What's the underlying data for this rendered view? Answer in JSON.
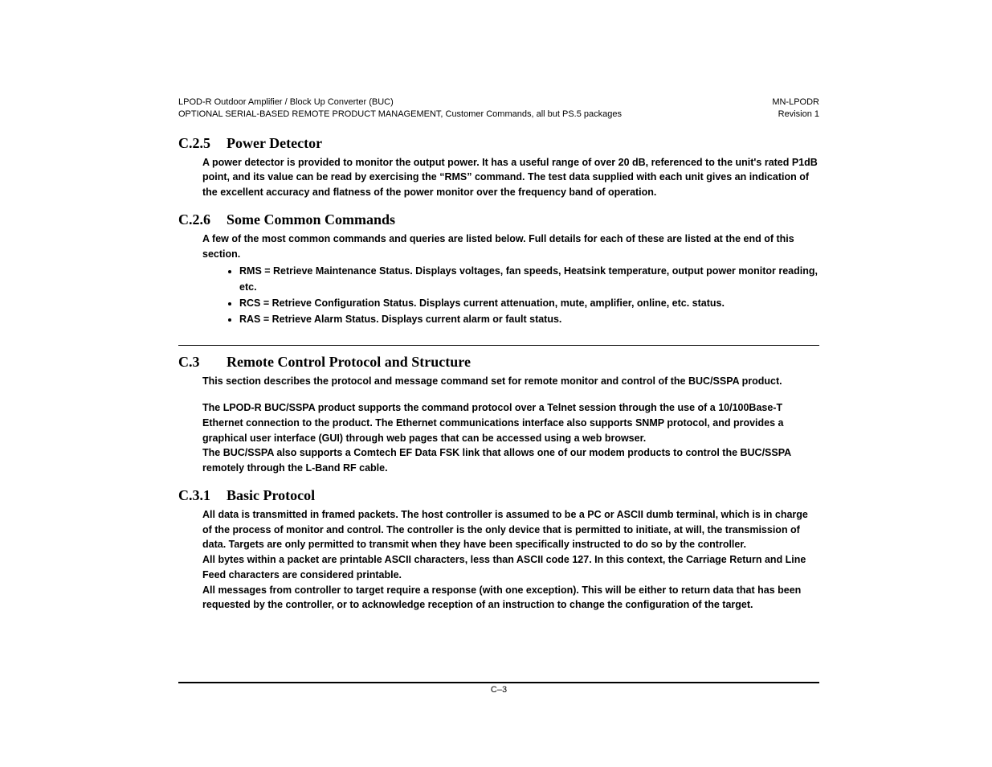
{
  "header": {
    "left_line1": "LPOD-R Outdoor Amplifier / Block Up Converter (BUC)",
    "left_line2": "OPTIONAL SERIAL-BASED REMOTE PRODUCT MANAGEMENT, Customer Commands, all but PS.5 packages",
    "right_line1": "MN-LPODR",
    "right_line2": "Revision 1"
  },
  "sections": {
    "c25": {
      "num": "C.2.5",
      "title": "Power Detector",
      "para": "A power detector is provided to monitor the output power.  It has a useful range of over 20 dB, referenced to the unit's rated P1dB point, and its value can be read by exercising the “RMS” command.  The test data supplied with each unit gives an indication of the excellent accuracy and flatness of the power monitor over the frequency band of operation."
    },
    "c26": {
      "num": "C.2.6",
      "title": "Some Common Commands",
      "intro": "A few of the most common commands and queries are listed below.  Full details for each of these are listed at the end of this section.",
      "items": [
        "RMS = Retrieve Maintenance Status.  Displays voltages, fan speeds, Heatsink temperature, output power monitor reading, etc.",
        "RCS = Retrieve Configuration Status.  Displays current attenuation, mute, amplifier, online, etc. status.",
        "RAS = Retrieve Alarm Status.  Displays current alarm or fault status."
      ]
    },
    "c3": {
      "num": "C.3",
      "title": "Remote Control Protocol and Structure",
      "para1": "This section describes the protocol and message command set for remote monitor and control of the BUC/SSPA product.",
      "para2a": "The LPOD-R  BUC/SSPA product supports the command protocol over a Telnet session through the use of a 10/100Base-T Ethernet connection to the product.  The Ethernet communications interface also supports SNMP protocol, and provides a graphical user interface (GUI) through web pages that can be accessed using a web browser.",
      "para2b": "The BUC/SSPA also supports a Comtech EF Data FSK link that allows one of our modem products to control the BUC/SSPA remotely through the L-Band RF cable."
    },
    "c31": {
      "num": "C.3.1",
      "title": "Basic Protocol",
      "para1a": "All data is transmitted in framed packets. The host controller is assumed to be a PC or ASCII dumb terminal, which is in charge of the process of monitor and control. The controller is the only device that is permitted to initiate, at will, the transmission of data. Targets are only permitted to transmit when they have been specifically instructed to do so by the controller.",
      "para1b": " All bytes within a packet are printable ASCII characters, less than ASCII code 127. In this context, the Carriage Return and Line Feed characters are considered printable.",
      "para2": "All messages from controller to target require a response (with one exception). This will be either to return data that has been requested by the controller, or to acknowledge reception of an instruction to change the configuration of the target."
    }
  },
  "footer": {
    "page_number": "C–3"
  }
}
